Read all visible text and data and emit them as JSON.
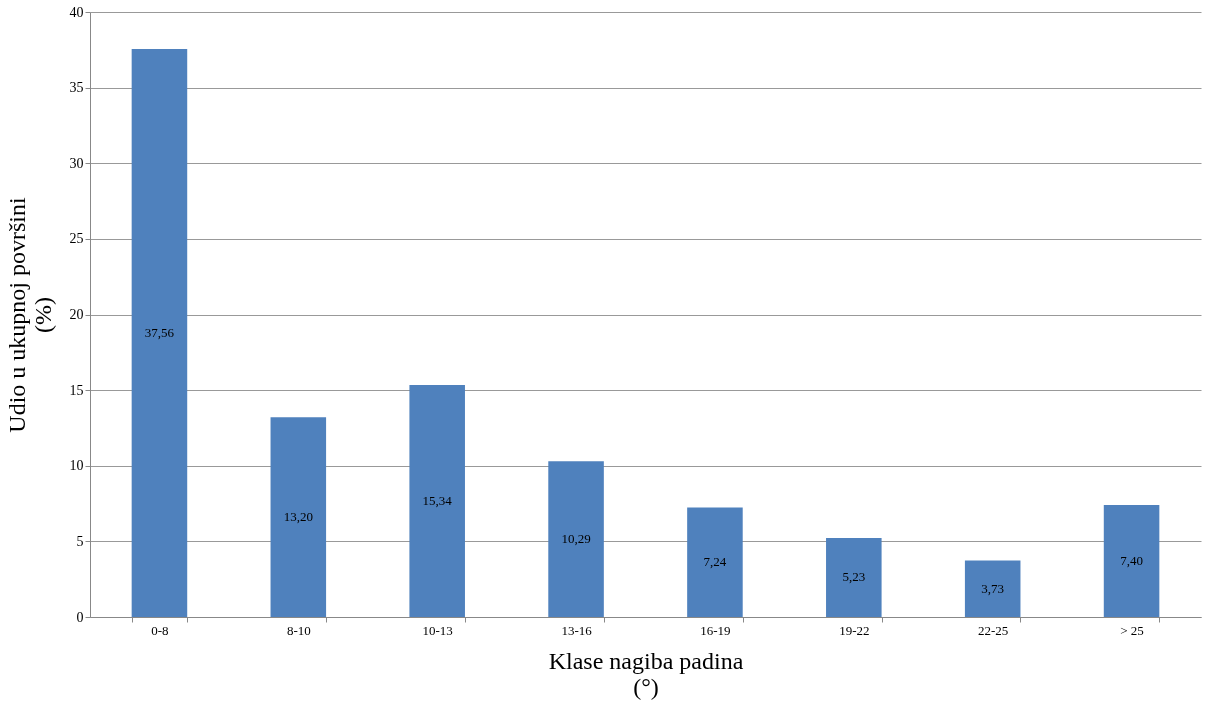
{
  "chart_data": {
    "type": "bar",
    "categories": [
      "0-8",
      "8-10",
      "10-13",
      "13-16",
      "16-19",
      "19-22",
      "22-25",
      "> 25"
    ],
    "values": [
      37.56,
      13.2,
      15.34,
      10.29,
      7.24,
      5.23,
      3.73,
      7.4
    ],
    "value_labels": [
      "37,56",
      "13,20",
      "15,34",
      "10,29",
      "7,24",
      "5,23",
      "3,73",
      "7,40"
    ],
    "color": "#4f81bd",
    "xlabel": "Klase nagiba padina\n(°)",
    "ylabel": "Udio u ukupnoj površini\n(%)",
    "ylim": [
      0,
      40
    ],
    "yticks": [
      0,
      5,
      10,
      15,
      20,
      25,
      30,
      35,
      40
    ],
    "grid": "y"
  }
}
